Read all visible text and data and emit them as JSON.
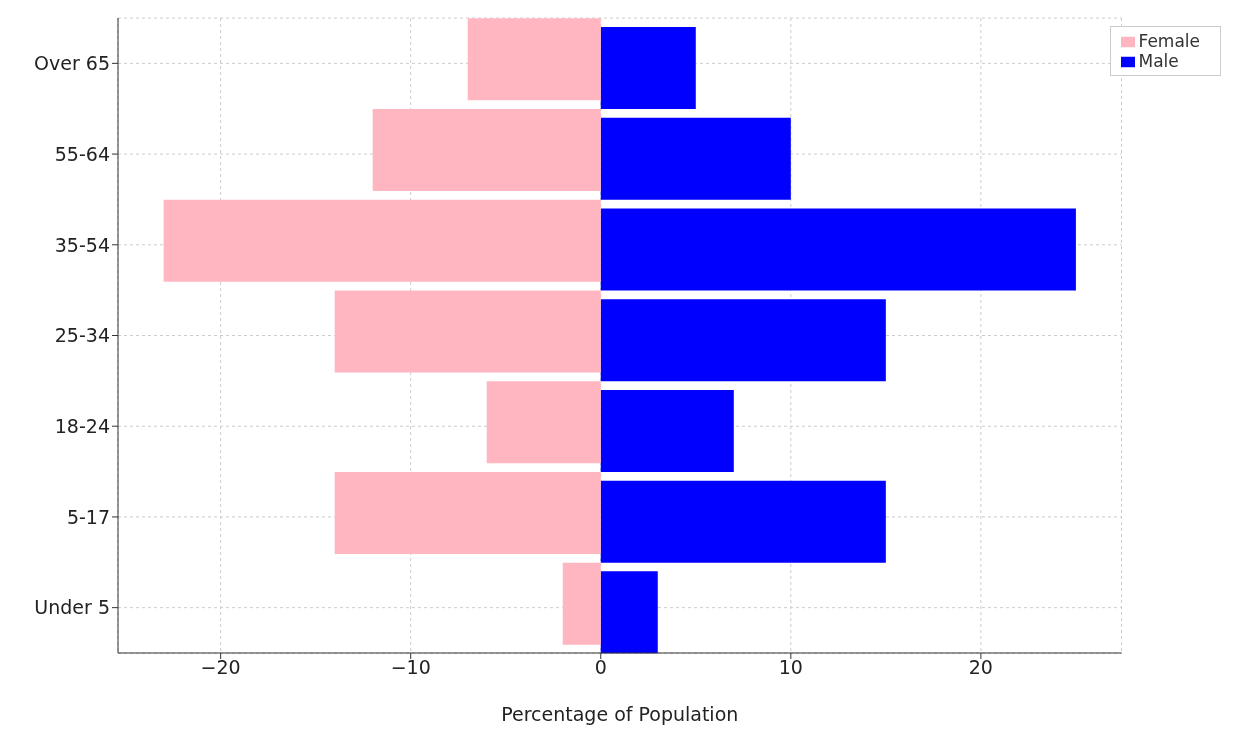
{
  "chart_data": {
    "type": "bar",
    "orientation": "horizontal",
    "xlabel": "Percentage of Population",
    "categories": [
      "Over 65",
      "55-64",
      "35-54",
      "25-34",
      "18-24",
      "5-17",
      "Under 5"
    ],
    "series": [
      {
        "name": "Male",
        "color": "#0000ff",
        "values": [
          5,
          10,
          25,
          15,
          7,
          15,
          3
        ]
      },
      {
        "name": "Female",
        "color": "#ffb6c1",
        "values": [
          -7,
          -12,
          -23,
          -14,
          -6,
          -14,
          -2
        ]
      }
    ],
    "xlim": [
      -25.4,
      27.4
    ],
    "xticks": [
      {
        "value": -20,
        "label": "−20"
      },
      {
        "value": -10,
        "label": "−10"
      },
      0,
      10,
      20
    ],
    "grid": true,
    "legend": "top right"
  }
}
